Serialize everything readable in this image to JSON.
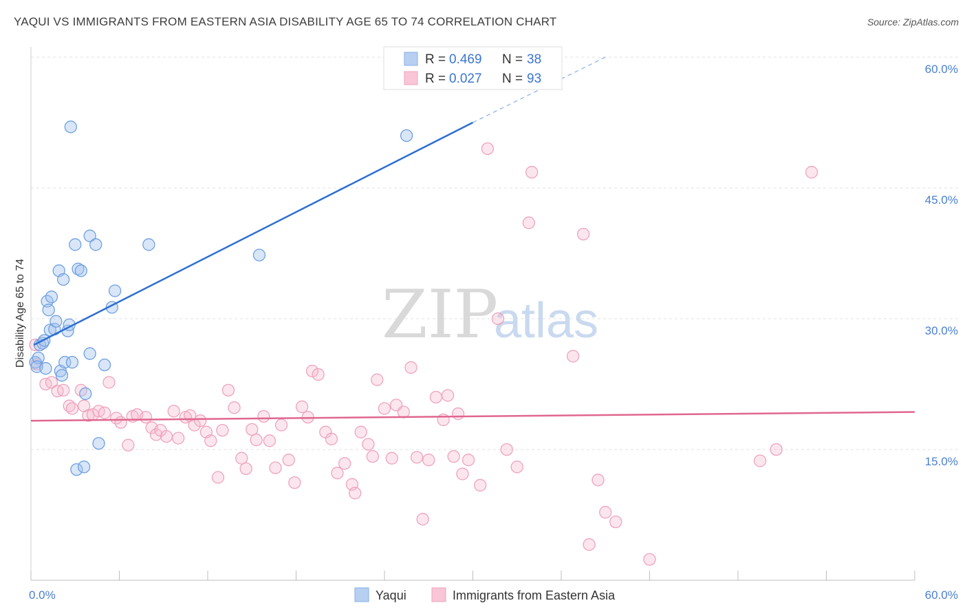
{
  "title": "YAQUI VS IMMIGRANTS FROM EASTERN ASIA DISABILITY AGE 65 TO 74 CORRELATION CHART",
  "source": "Source: ZipAtlas.com",
  "watermark": {
    "zip": "ZIP",
    "atlas": "atlas"
  },
  "legend": {
    "r_label": "R =",
    "n_label": "N =",
    "rows": [
      {
        "r": "0.469",
        "n": "38"
      },
      {
        "r": "0.027",
        "n": "93"
      }
    ]
  },
  "chart_data": {
    "type": "scatter",
    "title": "YAQUI VS IMMIGRANTS FROM EASTERN ASIA DISABILITY AGE 65 TO 74 CORRELATION CHART",
    "xlabel": "",
    "ylabel": "Disability Age 65 to 74",
    "xlim": [
      0,
      60
    ],
    "ylim": [
      0,
      60
    ],
    "x_tick_labels": [
      "0.0%",
      "60.0%"
    ],
    "y_ticks": [
      15,
      30,
      45,
      60
    ],
    "y_tick_labels": [
      "15.0%",
      "30.0%",
      "45.0%",
      "60.0%"
    ],
    "grid": true,
    "legend_placement": "top-center",
    "colors": {
      "yaqui": "#6ea0e0",
      "immigrants": "#eea3bd",
      "yaqui_line": "#2d6fd0",
      "immigrants_line": "#e0668e"
    },
    "series": [
      {
        "name": "Yaqui",
        "trend": {
          "x0": 0.2,
          "y0": 27.0,
          "x1": 30.0,
          "y1": 52.5,
          "dash_to_x": 39.0,
          "dash_to_y": 60.0
        },
        "points": [
          [
            0.3,
            25.0
          ],
          [
            0.5,
            25.5
          ],
          [
            0.4,
            24.5
          ],
          [
            0.6,
            27.0
          ],
          [
            0.8,
            27.2
          ],
          [
            0.9,
            27.5
          ],
          [
            1.0,
            24.3
          ],
          [
            1.1,
            32.0
          ],
          [
            1.2,
            31.0
          ],
          [
            1.3,
            28.7
          ],
          [
            1.4,
            32.5
          ],
          [
            1.6,
            28.8
          ],
          [
            1.7,
            29.7
          ],
          [
            1.9,
            35.5
          ],
          [
            2.0,
            24.0
          ],
          [
            2.1,
            23.5
          ],
          [
            2.2,
            34.5
          ],
          [
            2.3,
            25.0
          ],
          [
            2.5,
            28.6
          ],
          [
            2.6,
            29.3
          ],
          [
            2.8,
            25.0
          ],
          [
            2.7,
            52.0
          ],
          [
            3.0,
            38.5
          ],
          [
            3.1,
            12.7
          ],
          [
            3.2,
            35.7
          ],
          [
            3.4,
            35.5
          ],
          [
            3.6,
            13.0
          ],
          [
            3.7,
            21.4
          ],
          [
            4.0,
            26.0
          ],
          [
            4.0,
            39.5
          ],
          [
            4.4,
            38.5
          ],
          [
            4.6,
            15.7
          ],
          [
            5.0,
            24.7
          ],
          [
            5.5,
            31.3
          ],
          [
            5.7,
            33.2
          ],
          [
            8.0,
            38.5
          ],
          [
            15.5,
            37.3
          ],
          [
            25.5,
            51.0
          ]
        ]
      },
      {
        "name": "Immigrants from Eastern Asia",
        "trend": {
          "x0": 0.0,
          "y0": 18.3,
          "x1": 60.0,
          "y1": 19.3
        },
        "points": [
          [
            0.3,
            27.0
          ],
          [
            0.4,
            24.8
          ],
          [
            1.0,
            22.5
          ],
          [
            1.4,
            22.7
          ],
          [
            1.8,
            21.7
          ],
          [
            2.2,
            21.8
          ],
          [
            2.6,
            20.0
          ],
          [
            2.8,
            19.7
          ],
          [
            3.4,
            21.8
          ],
          [
            3.6,
            20.0
          ],
          [
            3.9,
            18.9
          ],
          [
            4.2,
            19.0
          ],
          [
            4.6,
            19.4
          ],
          [
            5.0,
            19.2
          ],
          [
            5.3,
            22.7
          ],
          [
            5.8,
            18.6
          ],
          [
            6.1,
            18.1
          ],
          [
            6.6,
            15.5
          ],
          [
            6.9,
            18.8
          ],
          [
            7.2,
            19.0
          ],
          [
            7.8,
            18.7
          ],
          [
            8.2,
            17.5
          ],
          [
            8.5,
            16.7
          ],
          [
            8.8,
            17.2
          ],
          [
            9.2,
            16.5
          ],
          [
            9.7,
            19.4
          ],
          [
            10.0,
            16.3
          ],
          [
            10.5,
            18.7
          ],
          [
            10.8,
            18.9
          ],
          [
            11.1,
            17.8
          ],
          [
            11.5,
            18.3
          ],
          [
            11.9,
            17.0
          ],
          [
            12.2,
            16.0
          ],
          [
            12.7,
            11.8
          ],
          [
            13.0,
            17.2
          ],
          [
            13.4,
            21.8
          ],
          [
            13.8,
            19.8
          ],
          [
            14.3,
            14.0
          ],
          [
            14.6,
            12.8
          ],
          [
            15.0,
            17.3
          ],
          [
            15.3,
            16.1
          ],
          [
            15.8,
            18.8
          ],
          [
            16.2,
            16.0
          ],
          [
            16.6,
            12.9
          ],
          [
            17.0,
            17.8
          ],
          [
            17.5,
            13.8
          ],
          [
            17.9,
            11.2
          ],
          [
            18.4,
            19.9
          ],
          [
            18.8,
            18.7
          ],
          [
            19.1,
            24.0
          ],
          [
            19.5,
            23.6
          ],
          [
            20.0,
            17.0
          ],
          [
            20.4,
            16.2
          ],
          [
            20.8,
            12.3
          ],
          [
            21.3,
            13.4
          ],
          [
            21.8,
            11.0
          ],
          [
            22.0,
            10.0
          ],
          [
            22.4,
            17.0
          ],
          [
            22.9,
            15.6
          ],
          [
            23.2,
            14.2
          ],
          [
            23.5,
            23.0
          ],
          [
            24.0,
            19.7
          ],
          [
            24.5,
            14.0
          ],
          [
            24.8,
            20.1
          ],
          [
            25.3,
            19.3
          ],
          [
            25.8,
            24.4
          ],
          [
            26.2,
            14.1
          ],
          [
            26.6,
            7.0
          ],
          [
            27.0,
            13.8
          ],
          [
            27.5,
            21.0
          ],
          [
            28.0,
            18.4
          ],
          [
            28.3,
            21.2
          ],
          [
            28.7,
            14.2
          ],
          [
            29.0,
            19.1
          ],
          [
            29.3,
            12.2
          ],
          [
            29.7,
            13.8
          ],
          [
            30.5,
            10.9
          ],
          [
            31.0,
            49.5
          ],
          [
            31.7,
            30.0
          ],
          [
            32.3,
            15.0
          ],
          [
            33.0,
            13.0
          ],
          [
            33.8,
            41.0
          ],
          [
            34.0,
            46.8
          ],
          [
            36.8,
            25.7
          ],
          [
            37.5,
            39.7
          ],
          [
            37.9,
            4.1
          ],
          [
            38.5,
            11.5
          ],
          [
            39.0,
            7.8
          ],
          [
            39.7,
            6.7
          ],
          [
            42.0,
            2.4
          ],
          [
            49.5,
            13.7
          ],
          [
            50.6,
            15.0
          ],
          [
            53.0,
            46.8
          ]
        ]
      }
    ]
  },
  "bottom_legend": {
    "items": [
      {
        "label": "Yaqui"
      },
      {
        "label": "Immigrants from Eastern Asia"
      }
    ]
  }
}
